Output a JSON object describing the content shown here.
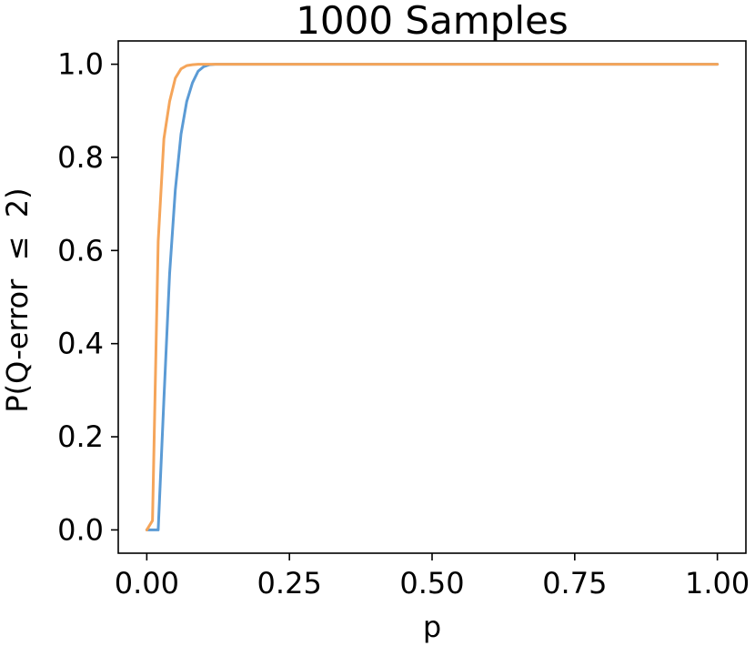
{
  "chart_data": {
    "type": "line",
    "title": "1000 Samples",
    "xlabel": "p",
    "ylabel": "P(Q-error  ≤  2)",
    "xlim": [
      -0.05,
      1.05
    ],
    "ylim": [
      -0.05,
      1.05
    ],
    "x_ticks": [
      0.0,
      0.25,
      0.5,
      0.75,
      1.0
    ],
    "x_tick_labels": [
      "0.00",
      "0.25",
      "0.50",
      "0.75",
      "1.00"
    ],
    "y_ticks": [
      0.0,
      0.2,
      0.4,
      0.6,
      0.8,
      1.0
    ],
    "y_tick_labels": [
      "0.0",
      "0.2",
      "0.4",
      "0.6",
      "0.8",
      "1.0"
    ],
    "grid": false,
    "series": [
      {
        "color": "#5b9bd5",
        "x": [
          0.0,
          0.01,
          0.02,
          0.03,
          0.04,
          0.05,
          0.06,
          0.07,
          0.08,
          0.09,
          0.1,
          0.11,
          0.12,
          0.15,
          0.2,
          0.3,
          0.5,
          0.75,
          1.0
        ],
        "y": [
          0.0,
          0.0,
          0.0,
          0.28,
          0.55,
          0.73,
          0.85,
          0.92,
          0.96,
          0.985,
          0.995,
          0.999,
          1.0,
          1.0,
          1.0,
          1.0,
          1.0,
          1.0,
          1.0
        ]
      },
      {
        "color": "#f5a55a",
        "x": [
          0.0,
          0.01,
          0.02,
          0.03,
          0.04,
          0.05,
          0.06,
          0.07,
          0.08,
          0.09,
          0.1,
          0.12,
          0.15,
          0.2,
          0.3,
          0.5,
          0.75,
          1.0
        ],
        "y": [
          0.0,
          0.02,
          0.62,
          0.84,
          0.92,
          0.97,
          0.99,
          0.997,
          0.999,
          1.0,
          1.0,
          1.0,
          1.0,
          1.0,
          1.0,
          1.0,
          1.0,
          1.0
        ]
      }
    ]
  }
}
